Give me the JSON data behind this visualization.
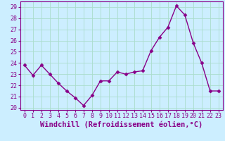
{
  "x": [
    0,
    1,
    2,
    3,
    4,
    5,
    6,
    7,
    8,
    9,
    10,
    11,
    12,
    13,
    14,
    15,
    16,
    17,
    18,
    19,
    20,
    21,
    22,
    23
  ],
  "y": [
    23.8,
    22.9,
    23.8,
    23.0,
    22.2,
    21.5,
    20.9,
    20.2,
    21.1,
    22.4,
    22.4,
    23.2,
    23.0,
    23.2,
    23.3,
    25.1,
    26.3,
    27.2,
    29.1,
    28.3,
    25.8,
    24.0,
    21.5,
    21.5
  ],
  "line_color": "#880088",
  "marker": "D",
  "marker_size": 2.5,
  "bg_color": "#cceeff",
  "grid_color": "#aaddcc",
  "xlabel": "Windchill (Refroidissement éolien,°C)",
  "ylim": [
    19.8,
    29.5
  ],
  "xlim": [
    -0.5,
    23.5
  ],
  "yticks": [
    20,
    21,
    22,
    23,
    24,
    25,
    26,
    27,
    28,
    29
  ],
  "xticks": [
    0,
    1,
    2,
    3,
    4,
    5,
    6,
    7,
    8,
    9,
    10,
    11,
    12,
    13,
    14,
    15,
    16,
    17,
    18,
    19,
    20,
    21,
    22,
    23
  ],
  "tick_color": "#880088",
  "label_color": "#880088",
  "xlabel_fontsize": 7.5,
  "tick_fontsize": 6,
  "line_width": 1.0
}
